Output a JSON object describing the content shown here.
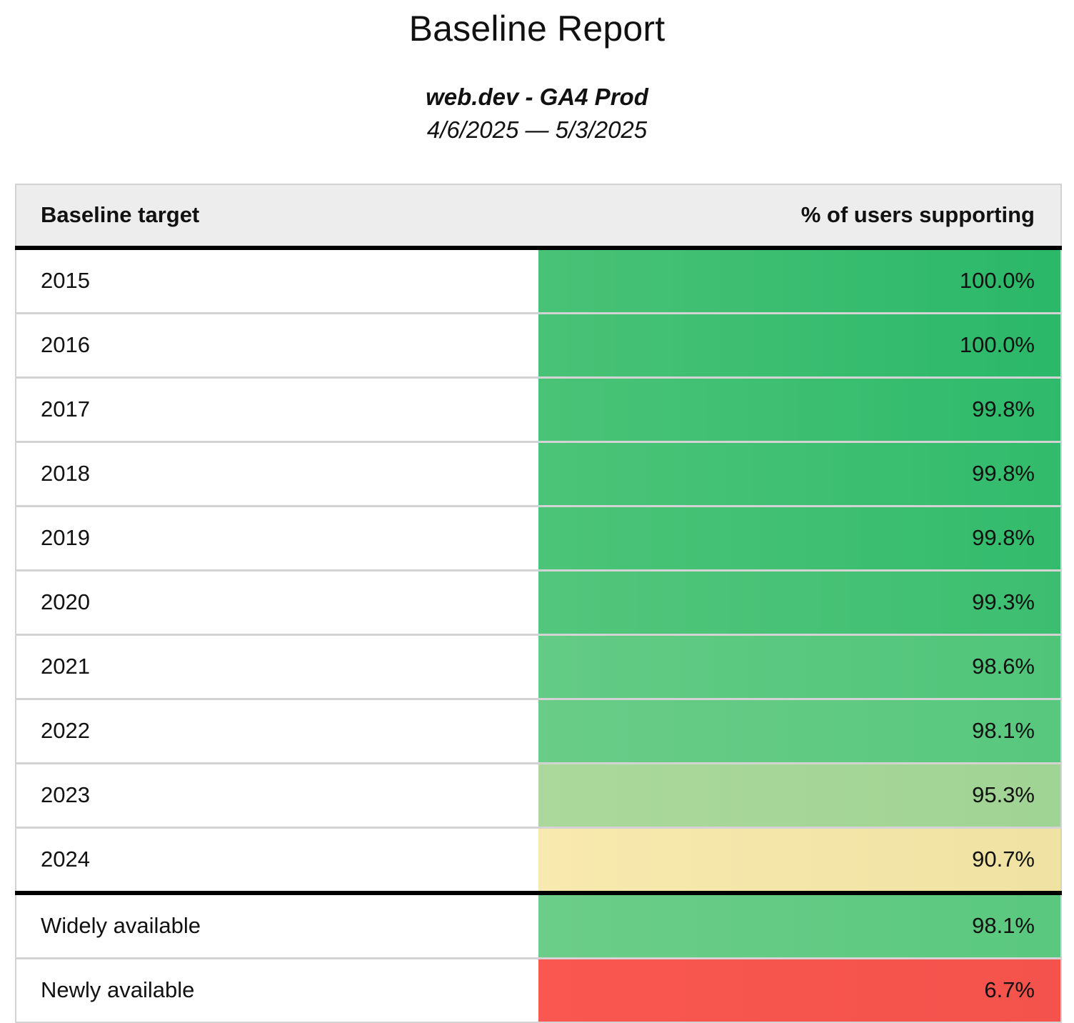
{
  "page": {
    "title": "Baseline Report",
    "subtitle": "web.dev - GA4 Prod",
    "date_range": "4/6/2025 — 5/3/2025"
  },
  "table": {
    "columns": [
      {
        "label": "Baseline target"
      },
      {
        "label": "% of users supporting"
      }
    ],
    "rows": [
      {
        "label": "2015",
        "value": "100.0%",
        "color_left": "#49c276",
        "color_right": "#2bb869"
      },
      {
        "label": "2016",
        "value": "100.0%",
        "color_left": "#49c276",
        "color_right": "#2bb869"
      },
      {
        "label": "2017",
        "value": "99.8%",
        "color_left": "#4ac377",
        "color_right": "#2fba6b"
      },
      {
        "label": "2018",
        "value": "99.8%",
        "color_left": "#4cc478",
        "color_right": "#32bb6c"
      },
      {
        "label": "2019",
        "value": "99.8%",
        "color_left": "#4cc478",
        "color_right": "#33bb6c"
      },
      {
        "label": "2020",
        "value": "99.3%",
        "color_left": "#53c67c",
        "color_right": "#3cbe70"
      },
      {
        "label": "2021",
        "value": "98.6%",
        "color_left": "#63cb85",
        "color_right": "#50c57a"
      },
      {
        "label": "2022",
        "value": "98.1%",
        "color_left": "#69cc87",
        "color_right": "#58c87e"
      },
      {
        "label": "2023",
        "value": "95.3%",
        "color_left": "#abd89b",
        "color_right": "#a0d494"
      },
      {
        "label": "2024",
        "value": "90.7%",
        "color_left": "#f8e9ae",
        "color_right": "#efe2a2"
      },
      {
        "label": "Widely available",
        "value": "98.1%",
        "color_left": "#6bcd88",
        "color_right": "#5ac87f"
      },
      {
        "label": "Newly available",
        "value": "6.7%",
        "color_left": "#f9574f",
        "color_right": "#f3534c"
      }
    ]
  },
  "chart_data": {
    "type": "table",
    "title": "Baseline Report",
    "subtitle": "web.dev - GA4 Prod",
    "date_range": "4/6/2025 — 5/3/2025",
    "columns": [
      "Baseline target",
      "% of users supporting"
    ],
    "categories": [
      "2015",
      "2016",
      "2017",
      "2018",
      "2019",
      "2020",
      "2021",
      "2022",
      "2023",
      "2024",
      "Widely available",
      "Newly available"
    ],
    "values": [
      100.0,
      100.0,
      99.8,
      99.8,
      99.8,
      99.3,
      98.6,
      98.1,
      95.3,
      90.7,
      98.1,
      6.7
    ],
    "value_unit": "%",
    "color_scale": {
      "high": "#2bb869",
      "mid": "#f8e9ae",
      "low": "#f3534c"
    }
  }
}
